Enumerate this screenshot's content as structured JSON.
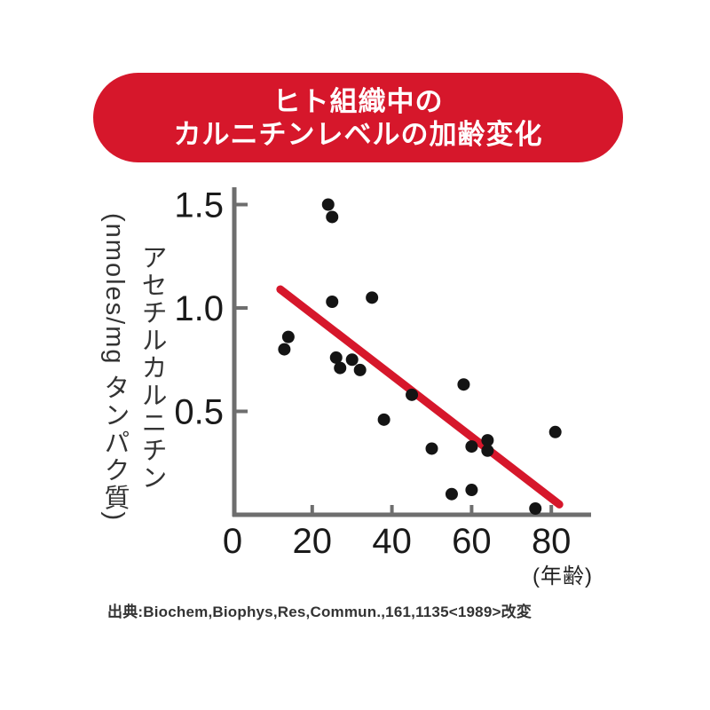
{
  "banner": {
    "line1": "ヒト組織中の",
    "line2": "カルニチンレベルの加齢変化",
    "bg_color": "#d6172b",
    "text_color": "#ffffff"
  },
  "chart_data": {
    "type": "scatter",
    "title": "ヒト組織中のカルニチンレベルの加齢変化",
    "ylabel": "アセチルカルニチン",
    "ylabel_unit": "(nmoles/mg タンパク質)",
    "xlabel": "(年齢)",
    "x_ticks": [
      0,
      20,
      40,
      60,
      80
    ],
    "y_ticks": [
      0.5,
      1.0,
      1.5
    ],
    "xlim": [
      0,
      90
    ],
    "ylim": [
      0,
      1.6
    ],
    "grid": false,
    "legend": false,
    "points": [
      {
        "age": 13,
        "value": 0.8
      },
      {
        "age": 14,
        "value": 0.86
      },
      {
        "age": 24,
        "value": 1.5
      },
      {
        "age": 25,
        "value": 1.44
      },
      {
        "age": 25,
        "value": 1.03
      },
      {
        "age": 26,
        "value": 0.76
      },
      {
        "age": 27,
        "value": 0.71
      },
      {
        "age": 30,
        "value": 0.75
      },
      {
        "age": 32,
        "value": 0.7
      },
      {
        "age": 35,
        "value": 1.05
      },
      {
        "age": 38,
        "value": 0.46
      },
      {
        "age": 45,
        "value": 0.58
      },
      {
        "age": 50,
        "value": 0.32
      },
      {
        "age": 55,
        "value": 0.1
      },
      {
        "age": 58,
        "value": 0.63
      },
      {
        "age": 60,
        "value": 0.33
      },
      {
        "age": 60,
        "value": 0.12
      },
      {
        "age": 64,
        "value": 0.36
      },
      {
        "age": 64,
        "value": 0.31
      },
      {
        "age": 76,
        "value": 0.03
      },
      {
        "age": 81,
        "value": 0.4
      }
    ],
    "trend_line": {
      "x_start": 12,
      "y_start": 1.09,
      "x_end": 82,
      "y_end": 0.05
    },
    "colors": {
      "point": "#141414",
      "trend": "#d6172b",
      "axis": "#6e6e6e",
      "tick_label": "#1a1a1a"
    }
  },
  "citation": {
    "text": "出典:Biochem,Biophys,Res,Commun.,161,1135<1989>改変"
  }
}
